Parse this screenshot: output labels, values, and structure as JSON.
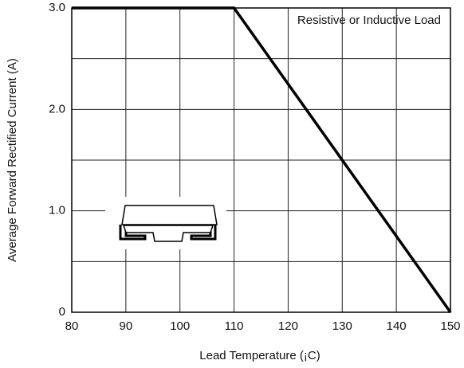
{
  "chart_data": {
    "type": "line",
    "annotation": "Resistive or Inductive Load",
    "xlabel": "Lead Temperature (¡C)",
    "ylabel": "Average Forward Rectified Current (A)",
    "x": [
      80,
      110,
      150
    ],
    "series": [
      {
        "color": "#000000",
        "values": [
          3.0,
          3.0,
          0
        ]
      }
    ],
    "xlim": [
      80,
      150
    ],
    "ylim": [
      0,
      3.0
    ],
    "xticks": [
      80,
      90,
      100,
      110,
      120,
      130,
      140,
      150
    ],
    "yticks": [
      0,
      {
        "value": 1,
        "label": "1.0"
      },
      {
        "value": 2,
        "label": "2.0"
      },
      {
        "value": 3,
        "label": "3.0"
      }
    ],
    "minor_yticks": [
      0.5,
      1.5,
      2.5
    ],
    "grid": true
  }
}
